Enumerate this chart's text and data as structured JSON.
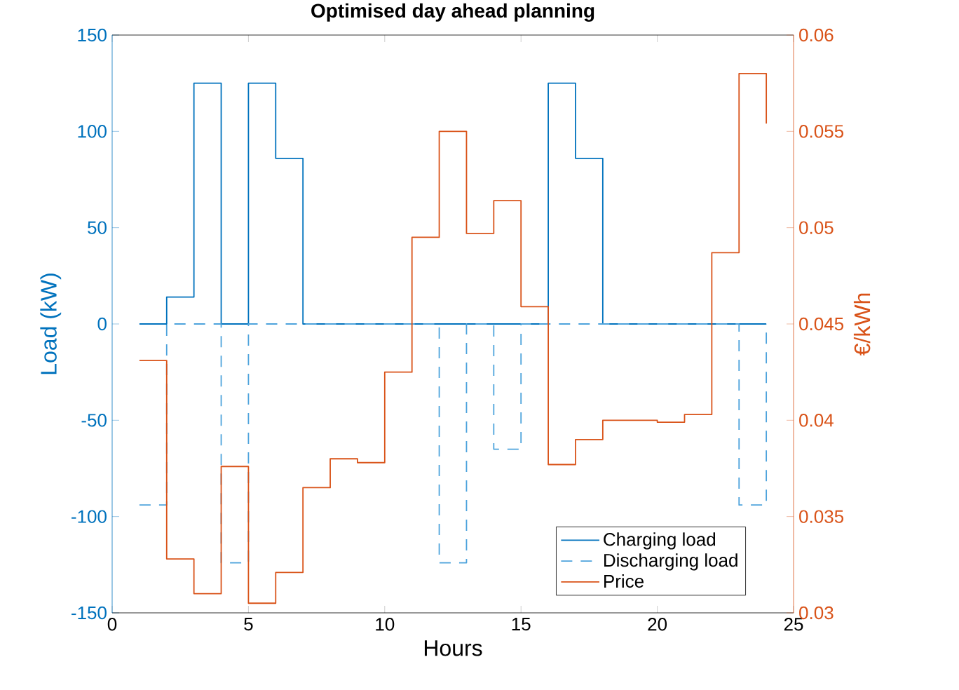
{
  "chart_data": {
    "type": "step",
    "title": "Optimised day ahead planning",
    "xlabel": "Hours",
    "ylabel": "Load (kW)",
    "y2label": "€/kWh",
    "x": [
      1,
      2,
      3,
      4,
      5,
      6,
      7,
      8,
      9,
      10,
      11,
      12,
      13,
      14,
      15,
      16,
      17,
      18,
      19,
      20,
      21,
      22,
      23,
      24
    ],
    "series": [
      {
        "name": "Charging load",
        "color": "#0072bd",
        "line_style": "solid",
        "values": [
          0,
          14,
          125,
          0,
          125,
          86,
          0,
          0,
          0,
          0,
          0,
          0,
          0,
          0,
          0,
          125,
          86,
          0,
          0,
          0,
          0,
          0,
          0,
          0
        ]
      },
      {
        "name": "Discharging load",
        "color": "#4da3dc",
        "line_style": "dashed",
        "values": [
          -94,
          0,
          0,
          -124,
          0,
          0,
          0,
          0,
          0,
          0,
          0,
          -124,
          0,
          -65,
          0,
          0,
          0,
          0,
          0,
          0,
          0,
          0,
          -94,
          0
        ]
      },
      {
        "name": "Price",
        "color": "#d95319",
        "line_style": "solid",
        "axis": "y2",
        "values": [
          0.0431,
          0.0328,
          0.031,
          0.0376,
          0.0305,
          0.0321,
          0.0365,
          0.038,
          0.0378,
          0.0425,
          0.0495,
          0.055,
          0.0497,
          0.0514,
          0.0459,
          0.0377,
          0.039,
          0.04,
          0.04,
          0.0399,
          0.0403,
          0.0487,
          0.058,
          0.0554
        ]
      }
    ],
    "xlim": [
      0,
      25
    ],
    "xticks": [
      0,
      5,
      10,
      15,
      20,
      25
    ],
    "ylim": [
      -150,
      150
    ],
    "yticks": [
      -150,
      -100,
      -50,
      0,
      50,
      100,
      150
    ],
    "y2lim": [
      0.03,
      0.06
    ],
    "y2ticks": [
      0.03,
      0.035,
      0.04,
      0.045,
      0.05,
      0.055,
      0.06
    ],
    "legend": "bottom right",
    "marker": "none",
    "grid": false
  }
}
